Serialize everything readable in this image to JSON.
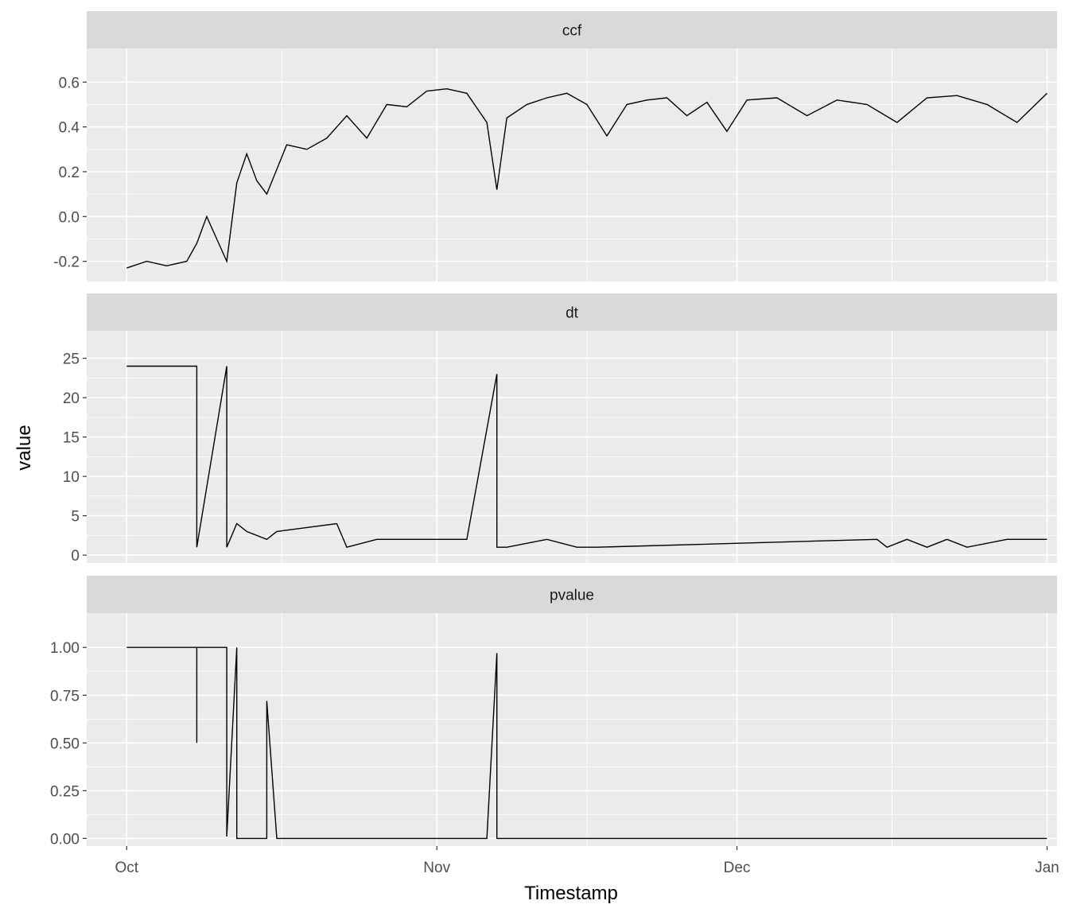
{
  "chart_data": {
    "type": "line",
    "xlabel": "Timestamp",
    "ylabel": "value",
    "x_ticks": [
      "Oct",
      "Nov",
      "Dec",
      "Jan"
    ],
    "x_tick_dates": [
      "2017-10-01",
      "2017-11-01",
      "2017-12-01",
      "2018-01-01"
    ],
    "xlim": [
      "2017-09-27",
      "2018-01-02"
    ],
    "grid": true,
    "highlight_color": "#ff0000",
    "line_color": "#000000",
    "panels": [
      {
        "title": "ccf",
        "ylim": [
          -0.29,
          0.75
        ],
        "y_ticks": [
          -0.2,
          0.0,
          0.2,
          0.4,
          0.6
        ],
        "y_tick_labels": [
          "-0.2",
          "0.0",
          "0.2",
          "0.4",
          "0.6"
        ],
        "series": [
          {
            "x": [
              "2017-10-01",
              "2017-10-03",
              "2017-10-05",
              "2017-10-07",
              "2017-10-08",
              "2017-10-09",
              "2017-10-10",
              "2017-10-11",
              "2017-10-12",
              "2017-10-13",
              "2017-10-14",
              "2017-10-15",
              "2017-10-17",
              "2017-10-19",
              "2017-10-21",
              "2017-10-23",
              "2017-10-25",
              "2017-10-27",
              "2017-10-29",
              "2017-10-31",
              "2017-11-02",
              "2017-11-04",
              "2017-11-06",
              "2017-11-07",
              "2017-11-08",
              "2017-11-10",
              "2017-11-12",
              "2017-11-14",
              "2017-11-16",
              "2017-11-18",
              "2017-11-20",
              "2017-11-22",
              "2017-11-24",
              "2017-11-26",
              "2017-11-28",
              "2017-11-30",
              "2017-12-02",
              "2017-12-05",
              "2017-12-08",
              "2017-12-11",
              "2017-12-14",
              "2017-12-17",
              "2017-12-20",
              "2017-12-23",
              "2017-12-26",
              "2017-12-29",
              "2018-01-01"
            ],
            "y": [
              -0.23,
              -0.2,
              -0.22,
              -0.2,
              -0.12,
              0.0,
              -0.1,
              -0.2,
              0.15,
              0.28,
              0.16,
              0.1,
              0.32,
              0.3,
              0.35,
              0.45,
              0.35,
              0.5,
              0.49,
              0.56,
              0.57,
              0.55,
              0.42,
              0.12,
              0.44,
              0.5,
              0.53,
              0.55,
              0.5,
              0.36,
              0.5,
              0.52,
              0.53,
              0.45,
              0.51,
              0.38,
              0.52,
              0.53,
              0.45,
              0.52,
              0.5,
              0.42,
              0.53,
              0.54,
              0.5,
              0.42,
              0.55
            ]
          }
        ]
      },
      {
        "title": "dt",
        "ylim": [
          -1,
          28.5
        ],
        "y_ticks": [
          0,
          5,
          10,
          15,
          20,
          25
        ],
        "y_tick_labels": [
          "0",
          "5",
          "10",
          "15",
          "20",
          "25"
        ],
        "series": [
          {
            "x": [
              "2017-10-01",
              "2017-10-08",
              "2017-10-08",
              "2017-10-11",
              "2017-10-11",
              "2017-10-12",
              "2017-10-13",
              "2017-10-15",
              "2017-10-16",
              "2017-10-22",
              "2017-10-23",
              "2017-10-26",
              "2017-10-29",
              "2017-11-04",
              "2017-11-07",
              "2017-11-07",
              "2017-11-07",
              "2017-11-08",
              "2017-11-12",
              "2017-11-12",
              "2017-11-15",
              "2017-11-17",
              "2017-12-15",
              "2017-12-16",
              "2017-12-18",
              "2017-12-20",
              "2017-12-22",
              "2017-12-24",
              "2017-12-28",
              "2018-01-01"
            ],
            "y": [
              24,
              24,
              1,
              24,
              1,
              4,
              3,
              2,
              3,
              4,
              1,
              2,
              2,
              2,
              23,
              7,
              1,
              1,
              2,
              2,
              1,
              1,
              2,
              1,
              2,
              1,
              2,
              1,
              2,
              2
            ]
          }
        ]
      },
      {
        "title": "pvalue",
        "ylim": [
          -0.04,
          1.18
        ],
        "y_ticks": [
          0.0,
          0.25,
          0.5,
          0.75,
          1.0
        ],
        "y_tick_labels": [
          "0.00",
          "0.25",
          "0.50",
          "0.75",
          "1.00"
        ],
        "series": [
          {
            "x": [
              "2017-10-01",
              "2017-10-08",
              "2017-10-08",
              "2017-10-08",
              "2017-10-11",
              "2017-10-11",
              "2017-10-12",
              "2017-10-12",
              "2017-10-15",
              "2017-10-15",
              "2017-10-16",
              "2017-11-06",
              "2017-11-07",
              "2017-11-07",
              "2017-11-08",
              "2018-01-01"
            ],
            "y": [
              1.0,
              1.0,
              0.5,
              1.0,
              1.0,
              0.01,
              1.0,
              0.0,
              0.0,
              0.72,
              0.0,
              0.0,
              0.97,
              0.0,
              0.0,
              0.0
            ]
          }
        ]
      }
    ]
  }
}
